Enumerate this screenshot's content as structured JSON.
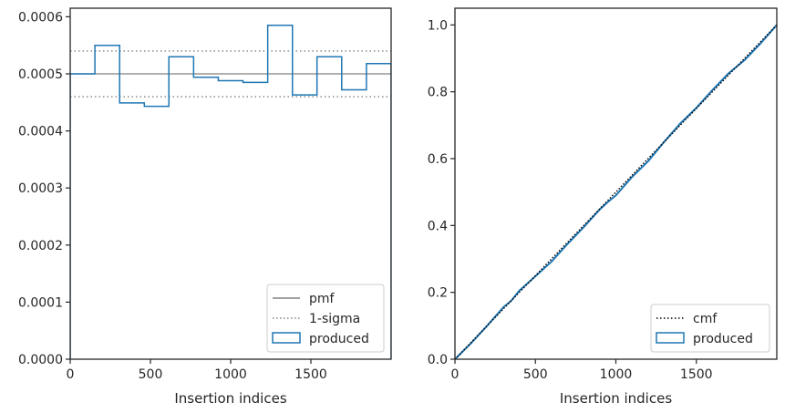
{
  "chart_data": [
    {
      "type": "line",
      "xlabel": "Insertion indices",
      "ylabel": "",
      "xlim": [
        0,
        2000
      ],
      "ylim": [
        0,
        0.000615
      ],
      "xticks": [
        0,
        500,
        1000,
        1500
      ],
      "xtick_labels": [
        "0",
        "500",
        "1000",
        "1500"
      ],
      "yticks": [
        0,
        0.0001,
        0.0002,
        0.0003,
        0.0004,
        0.0005,
        0.0006
      ],
      "ytick_labels": [
        "0.0000",
        "0.0001",
        "0.0002",
        "0.0003",
        "0.0004",
        "0.0005",
        "0.0006"
      ],
      "grid": false,
      "legend_position": "bottom-right",
      "pmf": 0.0005,
      "sigma_bounds": [
        0.00046,
        0.00054
      ],
      "bin_edges": [
        0,
        154,
        308,
        462,
        615,
        769,
        923,
        1077,
        1231,
        1385,
        1538,
        1692,
        1846,
        2000
      ],
      "produced": [
        0.0005,
        0.00055,
        0.000449,
        0.000443,
        0.00053,
        0.000494,
        0.000488,
        0.000485,
        0.000585,
        0.000463,
        0.00053,
        0.000472,
        0.000518
      ],
      "legend": [
        {
          "label": "pmf",
          "style": "solid",
          "color": "#808080"
        },
        {
          "label": "1-sigma",
          "style": "dotted",
          "color": "#808080"
        },
        {
          "label": "produced",
          "style": "patch",
          "color": "#1f77b4"
        }
      ]
    },
    {
      "type": "line",
      "xlabel": "Insertion indices",
      "ylabel": "",
      "xlim": [
        0,
        2000
      ],
      "ylim": [
        0,
        1.05
      ],
      "xticks": [
        0,
        500,
        1000,
        1500
      ],
      "xtick_labels": [
        "0",
        "500",
        "1000",
        "1500"
      ],
      "yticks": [
        0,
        0.2,
        0.4,
        0.6,
        0.8,
        1.0
      ],
      "ytick_labels": [
        "0.0",
        "0.2",
        "0.4",
        "0.6",
        "0.8",
        "1.0"
      ],
      "grid": false,
      "legend_position": "bottom-right",
      "cmf": {
        "x": [
          0,
          2000
        ],
        "y": [
          0,
          1.0
        ]
      },
      "produced": {
        "x": [
          0,
          100,
          200,
          300,
          350,
          400,
          500,
          600,
          700,
          800,
          900,
          950,
          1000,
          1100,
          1200,
          1300,
          1400,
          1500,
          1600,
          1700,
          1800,
          1900,
          2000
        ],
        "y": [
          0,
          0.048,
          0.1,
          0.155,
          0.175,
          0.205,
          0.248,
          0.292,
          0.345,
          0.395,
          0.448,
          0.47,
          0.49,
          0.545,
          0.592,
          0.65,
          0.705,
          0.752,
          0.805,
          0.855,
          0.895,
          0.945,
          1.0
        ]
      },
      "legend": [
        {
          "label": "cmf",
          "style": "dotted",
          "color": "#000000"
        },
        {
          "label": "produced",
          "style": "patch",
          "color": "#1f77b4"
        }
      ]
    }
  ]
}
